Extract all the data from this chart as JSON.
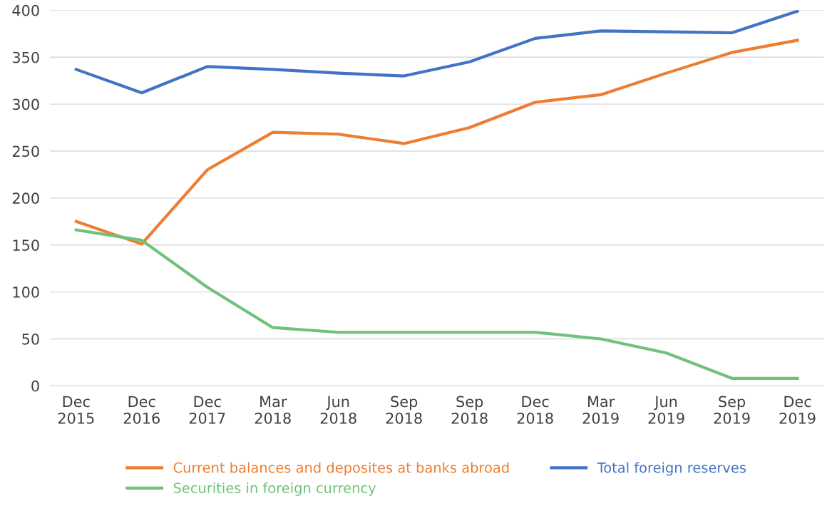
{
  "chart_data": {
    "type": "line",
    "categories": [
      "Dec\n2015",
      "Dec\n2016",
      "Dec\n2017",
      "Mar\n2018",
      "Jun\n2018",
      "Sep\n2018",
      "Sep\n2018",
      "Dec\n2018",
      "Mar\n2019",
      "Jun\n2019",
      "Sep\n2019",
      "Dec\n2019"
    ],
    "series": [
      {
        "name": "Current balances and deposites at banks abroad",
        "color": "#ed7d31",
        "values": [
          175,
          151,
          230,
          270,
          268,
          258,
          275,
          302,
          310,
          333,
          355,
          368
        ]
      },
      {
        "name": "Securities in foreign currency",
        "color": "#70c27a",
        "values": [
          166,
          155,
          105,
          62,
          57,
          57,
          57,
          57,
          50,
          35,
          8,
          8
        ]
      },
      {
        "name": "Total foreign reserves",
        "color": "#4472c4",
        "values": [
          337,
          312,
          340,
          337,
          333,
          330,
          345,
          370,
          378,
          377,
          376,
          399
        ]
      }
    ],
    "ylim": [
      0,
      400
    ],
    "yticks": [
      0,
      50,
      100,
      150,
      200,
      250,
      300,
      350,
      400
    ],
    "grid": "y",
    "legend": "bottom",
    "marker": "none",
    "line_style": "solid"
  }
}
